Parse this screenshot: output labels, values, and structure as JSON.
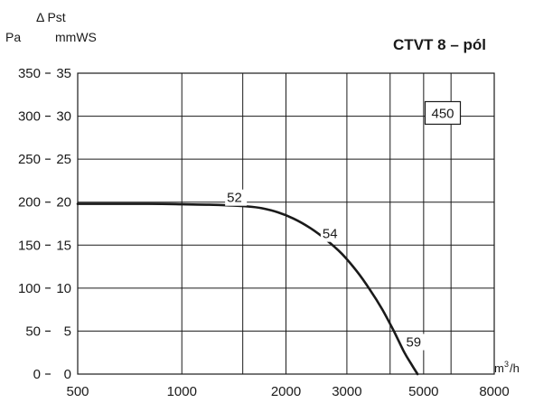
{
  "chart_data": {
    "type": "line",
    "title": "CTVT 8 – pól",
    "xlabel": "m³/h",
    "y_left_label": "Pa",
    "y_right_label_symbol": "Δ Pst",
    "y_right_label": "mmWS",
    "x_scale": "log",
    "xlim": [
      500,
      8000
    ],
    "ylim": [
      0,
      350
    ],
    "ylim_mmws": [
      0,
      35
    ],
    "x_ticks": [
      500,
      1000,
      2000,
      3000,
      5000,
      8000
    ],
    "x_tick_labels": [
      "500",
      "1000",
      "2000",
      "3000",
      "5000",
      "8000"
    ],
    "x_gridlines": [
      500,
      1000,
      1500,
      2000,
      3000,
      4000,
      5000,
      6000,
      8000
    ],
    "y_ticks_pa": [
      0,
      50,
      100,
      150,
      200,
      250,
      300,
      350
    ],
    "y_tick_labels_pa": [
      "0",
      "50",
      "100",
      "150",
      "200",
      "250",
      "300",
      "350"
    ],
    "y_tick_labels_mmws": [
      "0",
      "5",
      "10",
      "15",
      "20",
      "25",
      "30",
      "35"
    ],
    "grid": true,
    "series": [
      {
        "x": [
          500,
          800,
          1000,
          1200,
          1400,
          1550,
          1700,
          1900,
          2100,
          2350,
          2600,
          2900,
          3200,
          3500,
          3800,
          4100,
          4400,
          4600,
          4800
        ],
        "y": [
          198,
          198,
          197.5,
          197,
          196,
          195,
          193,
          188,
          181,
          170,
          157,
          140,
          120,
          98,
          75,
          50,
          25,
          12,
          0
        ]
      }
    ],
    "annotations": [
      {
        "text": "52",
        "x": 1350,
        "y": 200
      },
      {
        "text": "54",
        "x": 2550,
        "y": 158
      },
      {
        "text": "59",
        "x": 4450,
        "y": 32
      }
    ],
    "boxed_label": "450",
    "boxed_label_pos": {
      "x": 5050,
      "y": 298
    }
  }
}
